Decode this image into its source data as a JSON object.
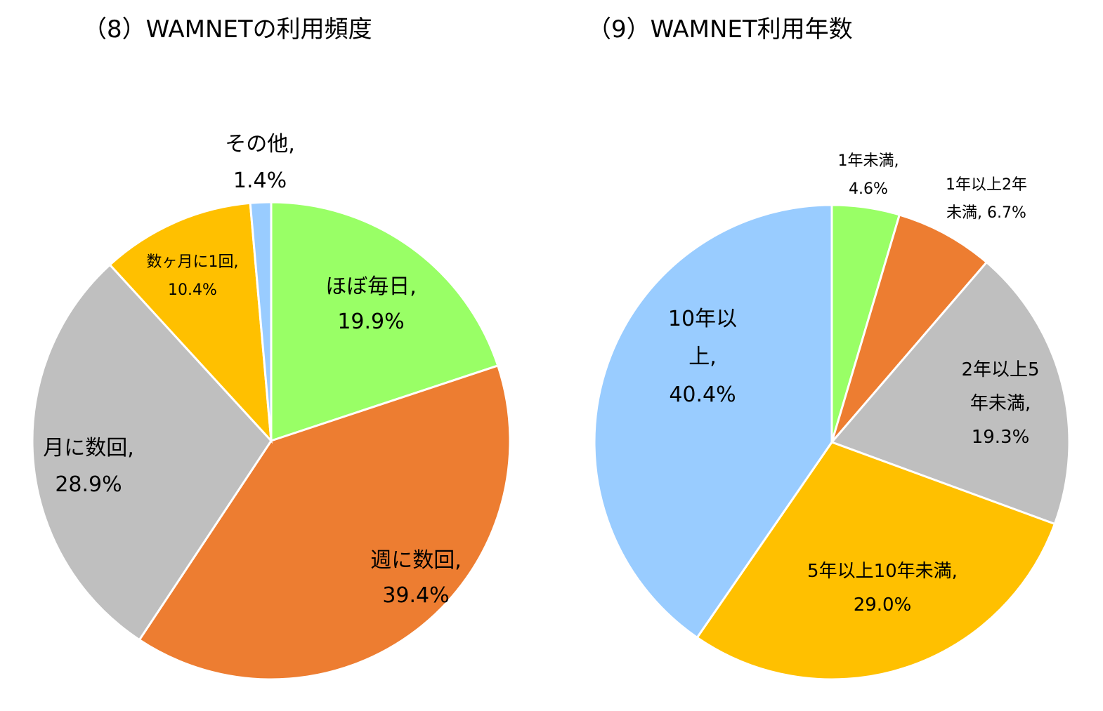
{
  "chart_data": [
    {
      "type": "pie",
      "title": "（8）WAMNETの利用頻度",
      "slices": [
        {
          "label": "ほぼ毎日",
          "value": 19.9,
          "display": "19.9%",
          "color": "#99FF66"
        },
        {
          "label": "週に数回",
          "value": 39.4,
          "display": "39.4%",
          "color": "#ED7D31"
        },
        {
          "label": "月に数回",
          "value": 28.9,
          "display": "28.9%",
          "color": "#BFBFBF"
        },
        {
          "label": "数ヶ月に1回",
          "value": 10.4,
          "display": "10.4%",
          "color": "#FFC000"
        },
        {
          "label": "その他",
          "value": 1.4,
          "display": "1.4%",
          "color": "#99CCFF"
        }
      ]
    },
    {
      "type": "pie",
      "title": "（9）WAMNET利用年数",
      "slices": [
        {
          "label": "1年未満",
          "value": 4.6,
          "display": "4.6%",
          "color": "#99FF66"
        },
        {
          "label": "1年以上2年未満",
          "value": 6.7,
          "display": "6.7%",
          "color": "#ED7D31"
        },
        {
          "label": "2年以上5年未満",
          "value": 19.3,
          "display": "19.3%",
          "color": "#BFBFBF"
        },
        {
          "label": "5年以上10年未満",
          "value": 29.0,
          "display": "29.0%",
          "color": "#FFC000"
        },
        {
          "label": "10年以上",
          "value": 40.4,
          "display": "40.4%",
          "color": "#99CCFF"
        }
      ]
    }
  ]
}
